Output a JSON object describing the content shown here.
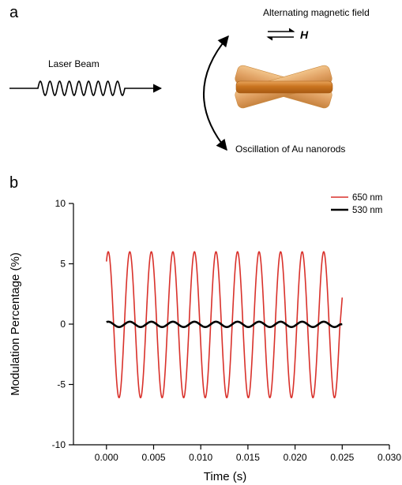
{
  "panel_a": {
    "label": "a",
    "laser_label": "Laser Beam",
    "field_label": "Alternating magnetic field",
    "h_symbol": "H",
    "oscillation_label": "Oscillation of Au nanorods"
  },
  "panel_b": {
    "label": "b"
  },
  "chart_data": {
    "type": "line",
    "title": "",
    "xlabel": "Time (s)",
    "ylabel": "Modulation Percentage (%)",
    "xlim": [
      -0.0035,
      0.03
    ],
    "ylim": [
      -10,
      10
    ],
    "xticks": [
      0.0,
      0.005,
      0.01,
      0.015,
      0.02,
      0.025,
      0.03
    ],
    "xtick_labels": [
      "0.000",
      "0.005",
      "0.010",
      "0.015",
      "0.020",
      "0.025",
      "0.030"
    ],
    "yticks": [
      -10,
      -5,
      0,
      5,
      10
    ],
    "ytick_labels": [
      "-10",
      "-5",
      "0",
      "5",
      "10"
    ],
    "grid": false,
    "legend_position": "top-right",
    "series": [
      {
        "name": "650 nm",
        "color": "#d9312b",
        "x_start": 0.0,
        "x_end": 0.025,
        "amplitude": 6.05,
        "offset": -0.05,
        "period": 0.002285,
        "phase_deg": 60,
        "end_value": 2.2
      },
      {
        "name": "530 nm",
        "color": "#000000",
        "x_start": 0.0,
        "x_end": 0.025,
        "amplitude": 0.22,
        "offset": -0.02,
        "period": 0.002285,
        "phase_deg": 60,
        "end_value": 0.0
      }
    ]
  }
}
